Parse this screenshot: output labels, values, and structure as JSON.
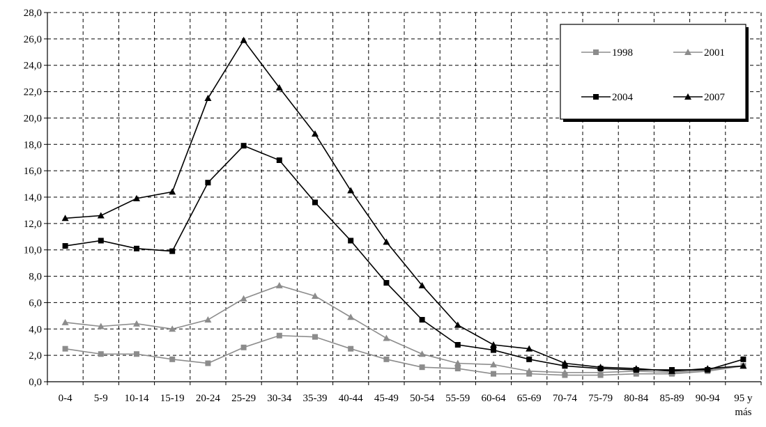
{
  "chart_data": {
    "type": "line",
    "categories": [
      "0-4",
      "5-9",
      "10-14",
      "15-19",
      "20-24",
      "25-29",
      "30-34",
      "35-39",
      "40-44",
      "45-49",
      "50-54",
      "55-59",
      "60-64",
      "65-69",
      "70-74",
      "75-79",
      "80-84",
      "85-89",
      "90-94",
      "95 y más"
    ],
    "category_lines": [
      [
        "0-4"
      ],
      [
        "5-9"
      ],
      [
        "10-14"
      ],
      [
        "15-19"
      ],
      [
        "20-24"
      ],
      [
        "25-29"
      ],
      [
        "30-34"
      ],
      [
        "35-39"
      ],
      [
        "40-44"
      ],
      [
        "45-49"
      ],
      [
        "50-54"
      ],
      [
        "55-59"
      ],
      [
        "60-64"
      ],
      [
        "65-69"
      ],
      [
        "70-74"
      ],
      [
        "75-79"
      ],
      [
        "80-84"
      ],
      [
        "85-89"
      ],
      [
        "90-94"
      ],
      [
        "95 y",
        "más"
      ]
    ],
    "ylim": [
      0,
      28
    ],
    "ytick_step": 2,
    "ytick_labels": [
      "0,0",
      "2,0",
      "4,0",
      "6,0",
      "8,0",
      "10,0",
      "12,0",
      "14,0",
      "16,0",
      "18,0",
      "20,0",
      "22,0",
      "24,0",
      "26,0",
      "28,0"
    ],
    "grid": true,
    "legend_position": "top-right",
    "series": [
      {
        "name": "1998",
        "color": "#8c8c8c",
        "marker": "square",
        "values": [
          2.5,
          2.1,
          2.1,
          1.7,
          1.4,
          2.6,
          3.5,
          3.4,
          2.5,
          1.7,
          1.1,
          1.0,
          0.6,
          0.6,
          0.5,
          0.5,
          0.6,
          0.6,
          0.8,
          1.2
        ]
      },
      {
        "name": "2001",
        "color": "#8c8c8c",
        "marker": "triangle",
        "values": [
          4.5,
          4.2,
          4.4,
          4.0,
          4.7,
          6.3,
          7.3,
          6.5,
          4.9,
          3.3,
          2.1,
          1.4,
          1.3,
          0.8,
          0.7,
          0.7,
          0.8,
          0.7,
          0.9,
          1.2
        ]
      },
      {
        "name": "2004",
        "color": "#000000",
        "marker": "square",
        "values": [
          10.3,
          10.7,
          10.1,
          9.9,
          15.1,
          17.9,
          16.8,
          13.6,
          10.7,
          7.5,
          4.7,
          2.8,
          2.4,
          1.7,
          1.2,
          1.0,
          0.9,
          0.9,
          0.9,
          1.7
        ]
      },
      {
        "name": "2007",
        "color": "#000000",
        "marker": "triangle",
        "values": [
          12.4,
          12.6,
          13.9,
          14.4,
          21.5,
          25.9,
          22.3,
          18.8,
          14.5,
          10.6,
          7.3,
          4.3,
          2.8,
          2.5,
          1.4,
          1.1,
          1.0,
          0.8,
          1.0,
          1.2
        ]
      }
    ]
  }
}
